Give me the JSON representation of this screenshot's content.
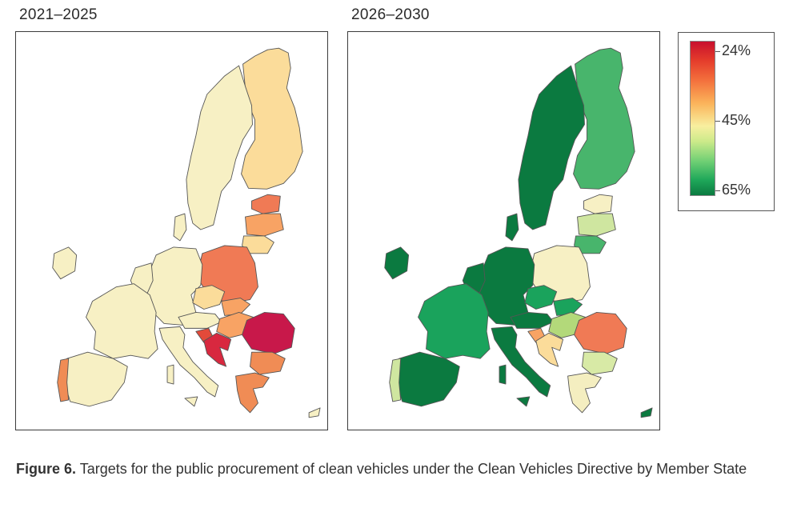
{
  "panels": [
    {
      "title": "2021–2025"
    },
    {
      "title": "2026–2030"
    }
  ],
  "legend": {
    "labels": [
      "24%",
      "45%",
      "65%"
    ],
    "colors": {
      "low": "#c8102e",
      "mid": "#f8ef9f",
      "high": "#0b7a40"
    }
  },
  "caption": {
    "label": "Figure 6.",
    "text": "Targets for the public procurement of clean vehicles under the Clean Vehicles Directive by Member State"
  },
  "map_colors": {
    "2021_2025": {
      "finland": "#fbdc9a",
      "sweden": "#f7f0c4",
      "estonia": "#f07a55",
      "latvia": "#f8a364",
      "lithuania": "#fbdc9a",
      "poland": "#f07a55",
      "germany": "#f7f0c4",
      "france": "#f7f0c4",
      "spain": "#f7f0c4",
      "portugal": "#f08c55",
      "italy": "#f7f0c4",
      "romania": "#c8184a",
      "bulgaria": "#f08c55",
      "greece": "#f08c55",
      "ireland": "#f7f0c4",
      "benelux": "#f7f0c4",
      "czechia": "#fbdc9a",
      "slovakia": "#f8a364",
      "hungary": "#f8a364",
      "austria": "#f7f0c4",
      "croatia": "#d8283f",
      "slovenia": "#e34a3a",
      "denmark": "#f7f0c4",
      "cyprus": "#f7f0c4"
    },
    "2026_2030": {
      "finland": "#48b56c",
      "sweden": "#0b7a40",
      "estonia": "#f7f0c4",
      "latvia": "#cfe6a0",
      "lithuania": "#48b56c",
      "poland": "#f7f0c4",
      "germany": "#0b7a40",
      "france": "#1aa35c",
      "spain": "#0b7a40",
      "portugal": "#cfe6a0",
      "italy": "#0b7a40",
      "romania": "#f07a55",
      "bulgaria": "#d8eaa6",
      "greece": "#f4eec0",
      "ireland": "#0b7a40",
      "benelux": "#0b7a40",
      "czechia": "#1aa35c",
      "slovakia": "#1aa35c",
      "hungary": "#b3d97a",
      "austria": "#0b7a40",
      "croatia": "#fbdc9a",
      "slovenia": "#f8a364",
      "denmark": "#0b7a40",
      "cyprus": "#0b7a40"
    }
  }
}
